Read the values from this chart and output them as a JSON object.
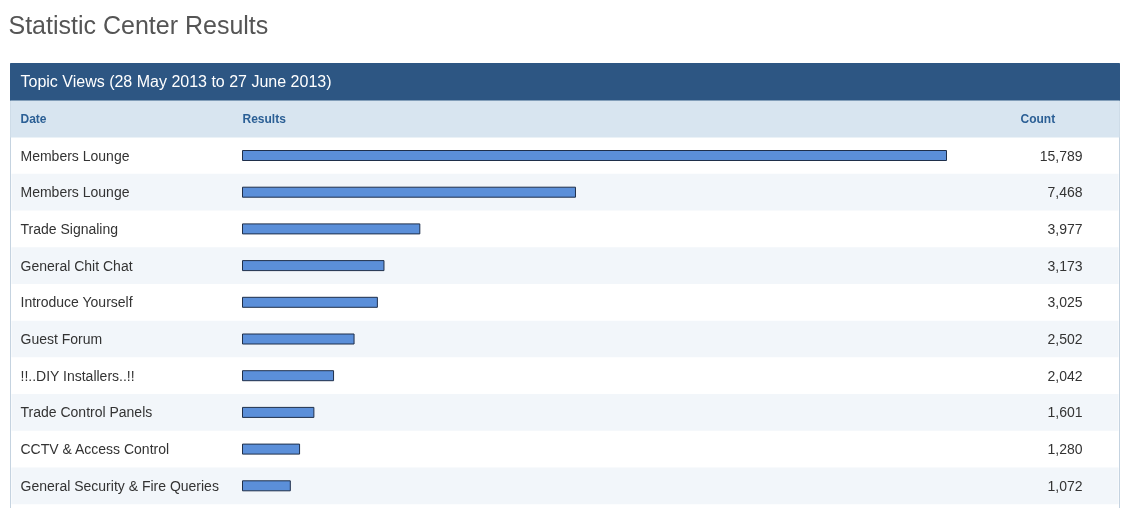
{
  "chart_data": {
    "type": "bar",
    "orientation": "horizontal",
    "title": "Statistic Center Results",
    "subtitle": "Topic Views (28 May 2013 to 27 June 2013)",
    "annotations": [
      "Date",
      "Results",
      "Count"
    ],
    "categories": [
      "Members Lounge",
      "Members Lounge",
      "Trade Signaling",
      "General Chit Chat",
      "Introduce Yourself",
      "Guest Forum",
      "!!..DIY Installers..!!",
      "Trade Control Panels",
      "CCTV & Access Control",
      "General Security & Fire Queries"
    ],
    "values": [
      15789,
      7468,
      3977,
      3173,
      3025,
      2502,
      2042,
      1601,
      1280,
      1072
    ],
    "value_labels": [
      "15,789",
      "7,468",
      "3,977",
      "3,173",
      "3,025",
      "2,502",
      "2,042",
      "1,601",
      "1,280",
      "1,072"
    ],
    "color": "#5b8fd9"
  }
}
